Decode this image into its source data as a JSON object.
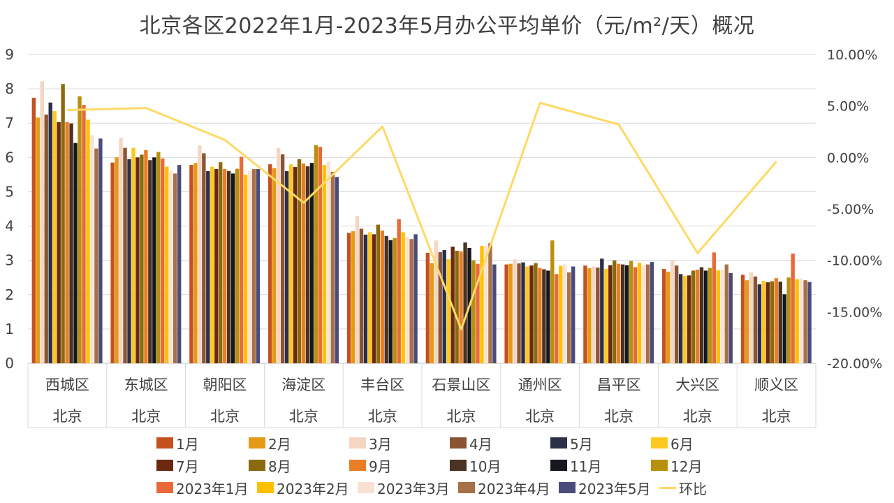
{
  "chart_data": {
    "type": "bar",
    "title": "北京各区2022年1月-2023年5月办公平均单价（元/m²/天）概况",
    "categories": [
      "西城区",
      "东城区",
      "朝阳区",
      "海淀区",
      "丰台区",
      "石景山区",
      "通州区",
      "昌平区",
      "大兴区",
      "顺义区"
    ],
    "group_label": "北京",
    "y_left": {
      "min": 0,
      "max": 9,
      "ticks": [
        "0",
        "1",
        "2",
        "3",
        "4",
        "5",
        "6",
        "7",
        "8",
        "9"
      ]
    },
    "y_right": {
      "min": -20,
      "max": 10,
      "ticks": [
        "-20.00%",
        "-15.00%",
        "-10.00%",
        "-5.00%",
        "0.00%",
        "5.00%",
        "10.00%"
      ]
    },
    "series": [
      {
        "name": "1月",
        "color": "#C5501E",
        "values": [
          7.74,
          5.85,
          5.78,
          5.8,
          3.8,
          3.22,
          2.88,
          2.85,
          2.75,
          2.58
        ]
      },
      {
        "name": "2月",
        "color": "#E59A15",
        "values": [
          7.16,
          6.0,
          5.84,
          5.69,
          3.85,
          2.92,
          2.9,
          2.77,
          2.67,
          2.42
        ]
      },
      {
        "name": "3月",
        "color": "#F4D6C2",
        "values": [
          8.22,
          6.57,
          6.35,
          6.28,
          4.3,
          3.58,
          3.03,
          2.82,
          2.99,
          2.65
        ]
      },
      {
        "name": "4月",
        "color": "#8B5535",
        "values": [
          7.25,
          6.28,
          6.12,
          6.09,
          3.92,
          3.24,
          2.91,
          2.79,
          2.85,
          2.53
        ]
      },
      {
        "name": "5月",
        "color": "#2B2F48",
        "values": [
          7.6,
          5.95,
          5.6,
          5.6,
          3.75,
          3.3,
          2.94,
          3.05,
          2.6,
          2.3
        ]
      },
      {
        "name": "6月",
        "color": "#FFC820",
        "values": [
          7.35,
          6.28,
          5.73,
          5.8,
          3.82,
          3.03,
          2.82,
          2.75,
          2.55,
          2.4
        ]
      },
      {
        "name": "7月",
        "color": "#6B2A10",
        "values": [
          7.03,
          6.0,
          5.66,
          5.72,
          3.76,
          3.4,
          2.85,
          2.86,
          2.56,
          2.36
        ]
      },
      {
        "name": "8月",
        "color": "#8A6A0C",
        "values": [
          8.14,
          6.08,
          5.86,
          5.95,
          4.04,
          3.28,
          2.92,
          3.0,
          2.7,
          2.39
        ]
      },
      {
        "name": "9月",
        "color": "#E87E25",
        "values": [
          7.03,
          6.21,
          5.66,
          5.82,
          3.87,
          3.26,
          2.78,
          2.9,
          2.73,
          2.48
        ]
      },
      {
        "name": "10月",
        "color": "#4A3322",
        "values": [
          6.99,
          5.92,
          5.6,
          5.74,
          3.71,
          3.52,
          2.74,
          2.88,
          2.8,
          2.38
        ]
      },
      {
        "name": "11月",
        "color": "#161820",
        "values": [
          6.42,
          6.0,
          5.53,
          5.84,
          3.59,
          3.36,
          2.7,
          2.86,
          2.7,
          2.01
        ]
      },
      {
        "name": "12月",
        "color": "#B8900C",
        "values": [
          7.78,
          6.16,
          5.67,
          6.36,
          3.65,
          3.0,
          3.58,
          2.98,
          2.78,
          2.5
        ]
      },
      {
        "name": "2023年1月",
        "color": "#E86A3A",
        "values": [
          7.53,
          5.97,
          6.02,
          6.31,
          4.2,
          2.9,
          2.6,
          2.8,
          3.23,
          3.2
        ]
      },
      {
        "name": "2023年2月",
        "color": "#FFC000",
        "values": [
          7.1,
          5.73,
          5.5,
          5.78,
          3.82,
          3.42,
          2.84,
          2.93,
          2.71,
          2.45
        ]
      },
      {
        "name": "2023年3月",
        "color": "#F9E1D4",
        "values": [
          6.65,
          5.62,
          5.6,
          5.88,
          3.68,
          3.43,
          2.88,
          2.85,
          2.72,
          2.47
        ]
      },
      {
        "name": "2023年4月",
        "color": "#A67048",
        "values": [
          6.26,
          5.53,
          5.66,
          5.58,
          3.62,
          3.5,
          2.65,
          2.88,
          2.88,
          2.42
        ]
      },
      {
        "name": "2023年5月",
        "color": "#4A4B7A",
        "values": [
          6.55,
          5.78,
          5.66,
          5.43,
          3.76,
          2.88,
          2.82,
          2.95,
          2.63,
          2.37
        ]
      }
    ],
    "line_series": {
      "name": "环比",
      "color": "#FFD966",
      "values": [
        4.6,
        4.8,
        1.7,
        -4.4,
        3.0,
        -16.7,
        5.3,
        3.2,
        -9.3,
        -0.4
      ]
    }
  }
}
